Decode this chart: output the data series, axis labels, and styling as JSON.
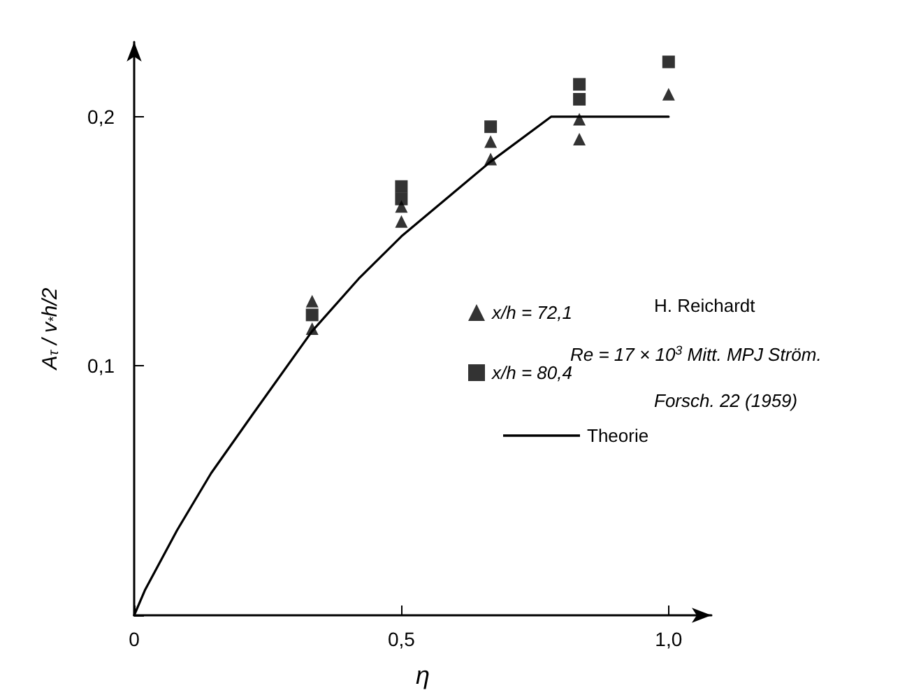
{
  "chart_data": {
    "type": "scatter",
    "xlabel": "η",
    "ylabel": "A$_{τ}$ / v$_{*}$h/2",
    "xlim": [
      0,
      1.08
    ],
    "ylim": [
      0,
      0.23
    ],
    "xticks": [
      0,
      {
        "value": 0.5,
        "label": "0,5"
      },
      {
        "value": 1.0,
        "label": "1,0"
      }
    ],
    "yticks": [
      {
        "value": 0,
        "label": null
      },
      {
        "value": 0.1,
        "label": "0,1"
      },
      {
        "value": 0.2,
        "label": "0,2"
      }
    ],
    "grid": false,
    "legend": "right",
    "series": [
      {
        "name": "x/h = 72,1",
        "marker": "triangle",
        "color": "#000000",
        "x": [
          0.333,
          0.333,
          0.5,
          0.5,
          0.667,
          0.667,
          0.833,
          0.833,
          1.0
        ],
        "values": [
          0.126,
          0.115,
          0.164,
          0.158,
          0.19,
          0.183,
          0.199,
          0.191,
          0.209
        ]
      },
      {
        "name": "x/h = 80,4",
        "marker": "square",
        "color": "#000000",
        "x": [
          0.333,
          0.5,
          0.5,
          0.667,
          0.833,
          0.833,
          1.0
        ],
        "values": [
          0.1205,
          0.172,
          0.167,
          0.196,
          0.213,
          0.207,
          0.222
        ]
      },
      {
        "name": "Theorie",
        "type": "line",
        "marker": "none",
        "line_style": "solid",
        "color": "#000000",
        "x": [
          0,
          0.02,
          0.08,
          0.144,
          0.223,
          0.333,
          0.42,
          0.5,
          0.6,
          0.667,
          0.78,
          1.0
        ],
        "values": [
          0,
          0.01,
          0.034,
          0.057,
          0.081,
          0.114,
          0.135,
          0.152,
          0.17,
          0.182,
          0.2,
          0.2
        ]
      }
    ],
    "annotations": [
      "H. Reichardt",
      "Re = 17 × 10$^{3}$ Mitt. MPJ Ström.",
      "Forsch. 22 (1959)"
    ]
  }
}
